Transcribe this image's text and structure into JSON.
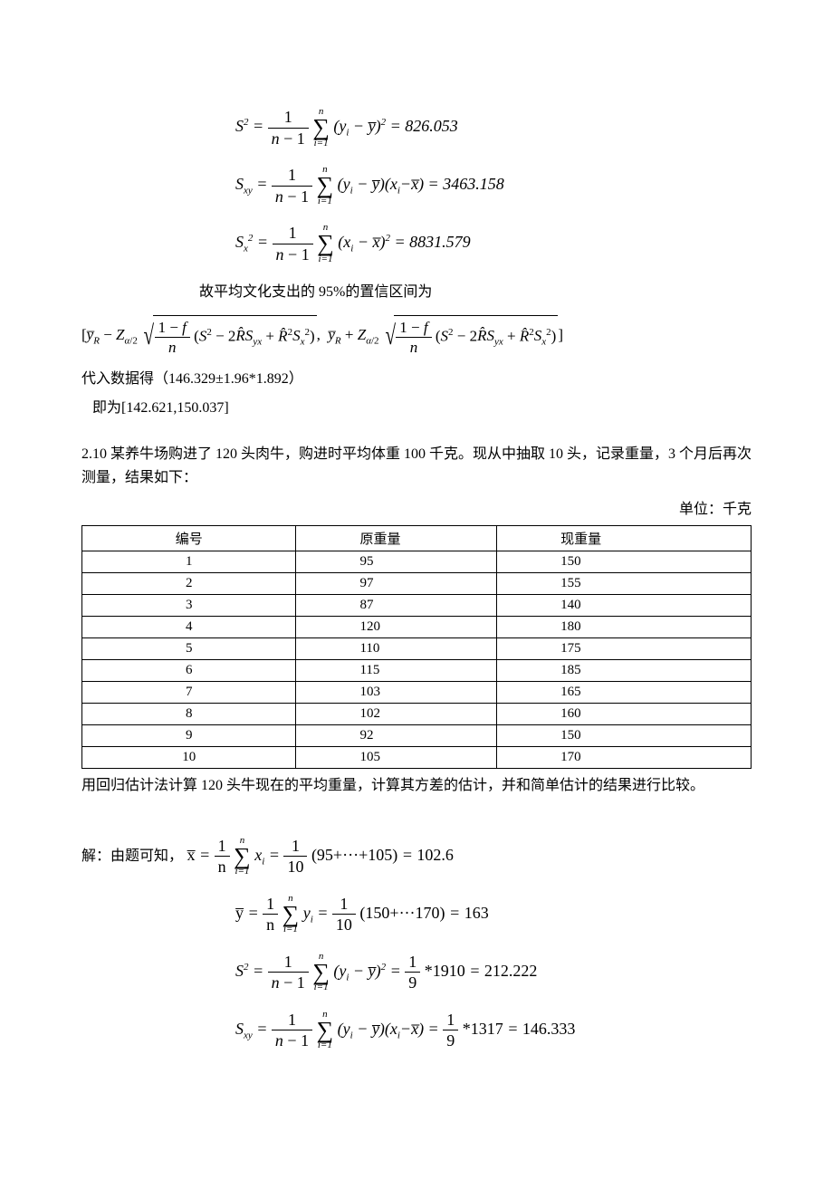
{
  "formulas_top": {
    "s2": {
      "lhs": "S",
      "result": "826.053"
    },
    "sxy": {
      "result": "3463.158"
    },
    "sx2": {
      "result": "8831.579"
    }
  },
  "text": {
    "conf_intro": "故平均文化支出的 95%的置信区间为",
    "sub_result": "代入数据得（146.329±1.96*1.892）",
    "interval": "   即为[142.621,150.037]",
    "problem": "2.10 某养牛场购进了 120 头肉牛，购进时平均体重 100 千克。现从中抽取 10 头，记录重量，3 个月后再次测量，结果如下：",
    "unit": "单位：千克",
    "after_table": "用回归估计法计算 120 头牛现在的平均重量，计算其方差的估计，并和简单估计的结果进行比较。",
    "solution_start": "解：由题可知，"
  },
  "table": {
    "headers": [
      "编号",
      "原重量",
      "现重量"
    ],
    "col_widths": [
      "32%",
      "30%",
      "38%"
    ],
    "rows": [
      [
        "1",
        "95",
        "150"
      ],
      [
        "2",
        "97",
        "155"
      ],
      [
        "3",
        "87",
        "140"
      ],
      [
        "4",
        "120",
        "180"
      ],
      [
        "5",
        "110",
        "175"
      ],
      [
        "6",
        "115",
        "185"
      ],
      [
        "7",
        "103",
        "165"
      ],
      [
        "8",
        "102",
        "160"
      ],
      [
        "9",
        "92",
        "150"
      ],
      [
        "10",
        "105",
        "170"
      ]
    ]
  },
  "solution": {
    "xbar": {
      "expand": "(95+···+105)",
      "result": "102.6"
    },
    "ybar": {
      "expand": "(150+···170)",
      "result": "163"
    },
    "s2": {
      "mult": "*1910",
      "result": "212.222"
    },
    "sxy": {
      "mult": "*1317",
      "result": "146.333"
    }
  },
  "style": {
    "font_color": "#000000",
    "bg_color": "#ffffff",
    "body_fontsize": 16,
    "formula_fontsize": 18
  }
}
